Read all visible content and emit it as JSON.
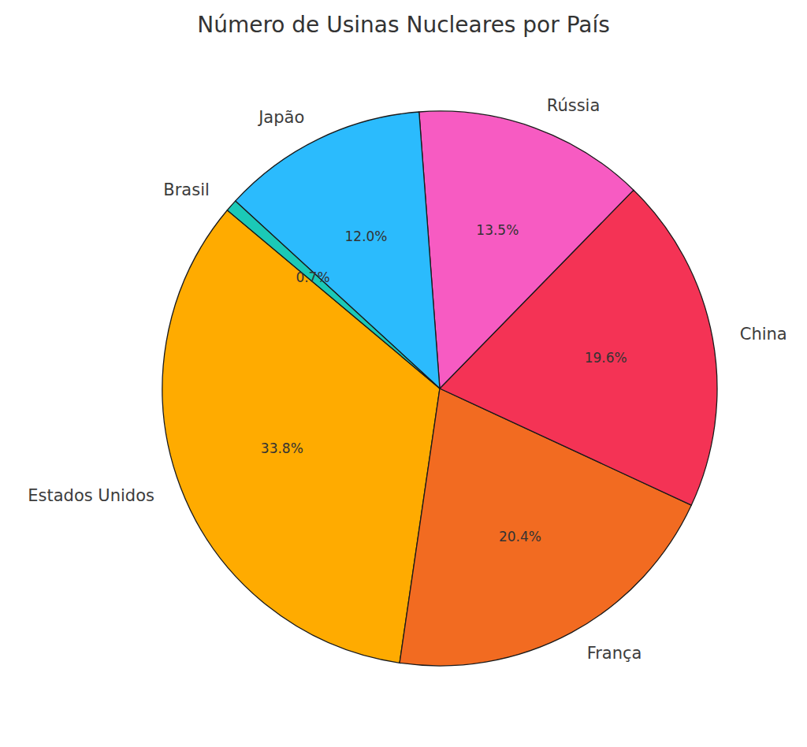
{
  "chart_data": {
    "type": "pie",
    "title": "Número de Usinas Nucleares por País",
    "categories": [
      "Estados Unidos",
      "França",
      "China",
      "Rússia",
      "Japão",
      "Brasil"
    ],
    "values": [
      33.8,
      20.4,
      19.6,
      13.5,
      12.0,
      0.7
    ],
    "value_labels": [
      "33.8%",
      "20.4%",
      "19.6%",
      "13.5%",
      "12.0%",
      "0.7%"
    ],
    "colors": [
      "#ffab00",
      "#f26b21",
      "#f43355",
      "#f75bc2",
      "#2bbbfd",
      "#1bc9b7"
    ],
    "data_labels": true
  }
}
